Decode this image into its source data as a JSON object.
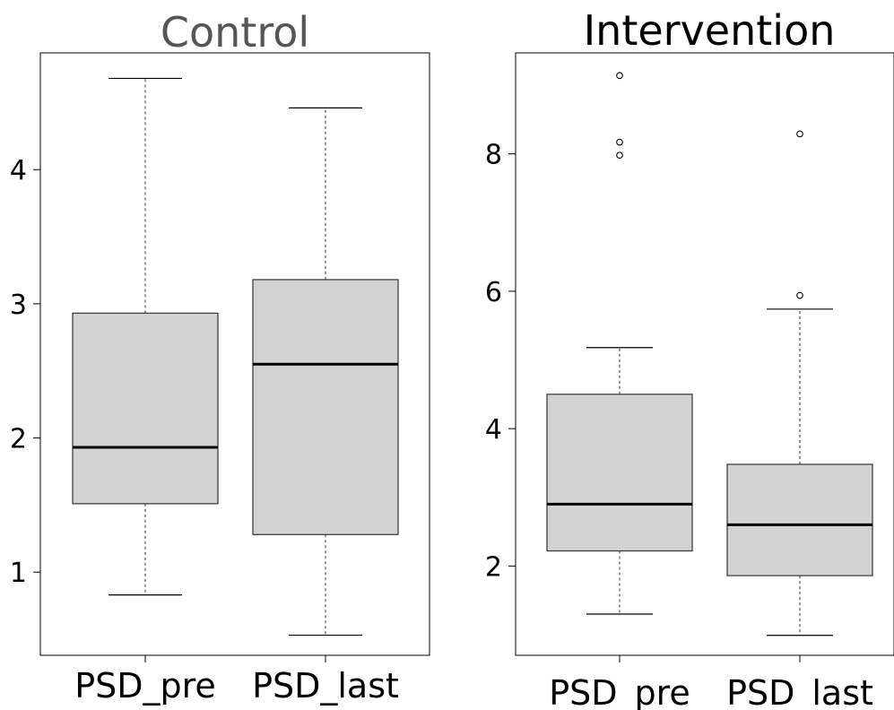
{
  "chart_data": [
    {
      "type": "box",
      "title": "Control",
      "title_color": "#555555",
      "categories": [
        "PSD_pre",
        "PSD_last"
      ],
      "ylim": [
        0.38,
        4.87
      ],
      "yticks": [
        1,
        2,
        3,
        4
      ],
      "ytick_labels": [
        "1",
        "2",
        "3",
        "4"
      ],
      "box_fill": "#d3d3d3",
      "boxes": [
        {
          "category": "PSD_pre",
          "whisker_low": 0.83,
          "q1": 1.51,
          "median": 1.93,
          "q3": 2.93,
          "whisker_high": 4.68,
          "outliers": []
        },
        {
          "category": "PSD_last",
          "whisker_low": 0.53,
          "q1": 1.28,
          "median": 2.55,
          "q3": 3.18,
          "whisker_high": 4.46,
          "outliers": []
        }
      ]
    },
    {
      "type": "box",
      "title": "Intervention",
      "title_color": "#000000",
      "categories": [
        "PSD_pre",
        "PSD_last"
      ],
      "ylim": [
        0.7,
        9.47
      ],
      "yticks": [
        2,
        4,
        6,
        8
      ],
      "ytick_labels": [
        "2",
        "4",
        "6",
        "8"
      ],
      "box_fill": "#d3d3d3",
      "boxes": [
        {
          "category": "PSD_pre",
          "whisker_low": 1.3,
          "q1": 2.22,
          "median": 2.9,
          "q3": 4.5,
          "whisker_high": 5.18,
          "outliers": [
            7.98,
            8.17,
            9.14
          ]
        },
        {
          "category": "PSD_last",
          "whisker_low": 0.99,
          "q1": 1.86,
          "median": 2.6,
          "q3": 3.48,
          "whisker_high": 5.74,
          "outliers": [
            5.94,
            8.29
          ]
        }
      ]
    }
  ]
}
